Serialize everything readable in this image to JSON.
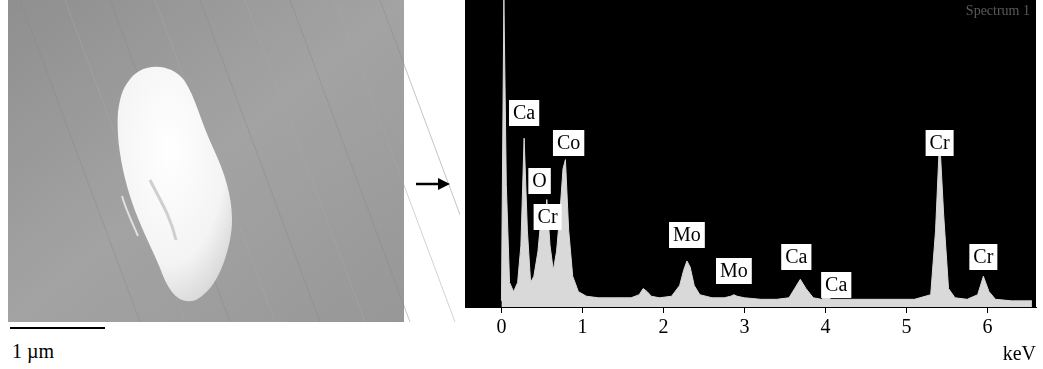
{
  "micrograph": {
    "scale_bar": "1 µm"
  },
  "chart_data": {
    "type": "line",
    "title": "Spectrum 1",
    "x_label": "keV",
    "x": [
      0,
      0.03,
      0.06,
      0.1,
      0.15,
      0.2,
      0.24,
      0.28,
      0.32,
      0.36,
      0.4,
      0.45,
      0.5,
      0.53,
      0.56,
      0.6,
      0.64,
      0.68,
      0.72,
      0.76,
      0.79,
      0.83,
      0.88,
      0.95,
      1.05,
      1.2,
      1.4,
      1.6,
      1.7,
      1.75,
      1.8,
      1.85,
      1.95,
      2.1,
      2.2,
      2.25,
      2.29,
      2.33,
      2.38,
      2.45,
      2.6,
      2.75,
      2.83,
      2.87,
      2.91,
      3.0,
      3.2,
      3.4,
      3.55,
      3.62,
      3.69,
      3.76,
      3.85,
      3.95,
      4.01,
      4.07,
      4.2,
      4.5,
      4.8,
      5.1,
      5.3,
      5.36,
      5.41,
      5.46,
      5.52,
      5.6,
      5.75,
      5.88,
      5.95,
      6.02,
      6.1,
      6.3,
      6.55
    ],
    "values": [
      2,
      100,
      40,
      8,
      5,
      8,
      20,
      55,
      25,
      8,
      10,
      18,
      32,
      25,
      35,
      20,
      12,
      18,
      30,
      45,
      48,
      25,
      10,
      5,
      3.5,
      3,
      3,
      3,
      4,
      6,
      5,
      3.5,
      3,
      3.5,
      7,
      12,
      15,
      13,
      7,
      4,
      3,
      3,
      3.5,
      4,
      3.5,
      3,
      2.5,
      2.5,
      3,
      6,
      9,
      6,
      3,
      2.5,
      3.5,
      2.5,
      2.5,
      2.5,
      2.5,
      2.5,
      4,
      25,
      55,
      30,
      6,
      3,
      2.5,
      4,
      10,
      5,
      2.5,
      2,
      2
    ],
    "color": "#d9d9d9",
    "xlim": [
      -0.45,
      6.6
    ],
    "xticks": [
      0,
      1,
      2,
      3,
      4,
      5,
      6
    ],
    "ylim": [
      0,
      100
    ],
    "grid": false,
    "tick_labels": "x",
    "annotations": [
      {
        "text": "Ca",
        "x": 0.28
      },
      {
        "text": "Co",
        "x": 0.78
      },
      {
        "text": "O",
        "x": 0.52
      },
      {
        "text": "Cr",
        "x": 0.57
      },
      {
        "text": "Mo",
        "x": 2.29
      },
      {
        "text": "Mo",
        "x": 2.87
      },
      {
        "text": "Ca",
        "x": 3.69
      },
      {
        "text": "Ca",
        "x": 4.01
      },
      {
        "text": "Cr",
        "x": 5.41
      },
      {
        "text": "Cr",
        "x": 5.95
      }
    ]
  }
}
